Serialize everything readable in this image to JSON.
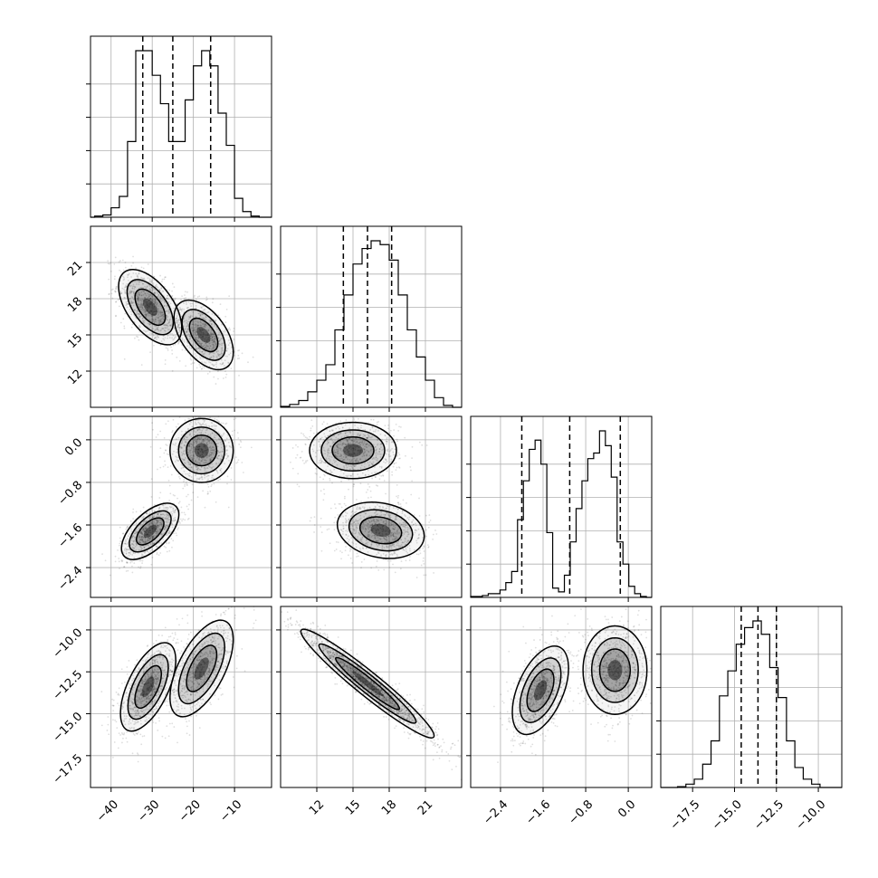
{
  "chart_data": {
    "type": "corner",
    "title": "",
    "grid": true,
    "variables": [
      {
        "range": [
          -45,
          -1
        ],
        "ticks": [
          -40,
          -30,
          -20,
          -10
        ],
        "tick_labels": [
          "-40",
          "-30",
          "-20",
          "-10"
        ],
        "quantiles": [
          -32.3,
          -25.0,
          -15.8
        ]
      },
      {
        "range": [
          9,
          24
        ],
        "ticks": [
          12,
          15,
          18,
          21
        ],
        "tick_labels": [
          "12",
          "15",
          "18",
          "21"
        ],
        "quantiles": [
          14.2,
          16.2,
          18.2
        ]
      },
      {
        "range": [
          -2.96,
          0.44
        ],
        "ticks": [
          -2.4,
          -1.6,
          -0.8,
          0.0
        ],
        "tick_labels": [
          "-2.4",
          "-1.6",
          "-0.8",
          "0.0"
        ],
        "quantiles": [
          -2.0,
          -1.1,
          -0.15
        ]
      },
      {
        "range": [
          -19.4,
          -8.6
        ],
        "ticks": [
          -17.5,
          -15.0,
          -12.5,
          -10.0
        ],
        "tick_labels": [
          "-17.5",
          "-15.0",
          "-12.5",
          "-10.0"
        ],
        "quantiles": [
          -14.6,
          -13.6,
          -12.5
        ]
      }
    ],
    "histograms": [
      {
        "variable": 0,
        "bin_edges": [
          -44,
          -42,
          -40,
          -38,
          -36,
          -34,
          -32,
          -30,
          -28,
          -26,
          -24,
          -22,
          -20,
          -18,
          -16,
          -14,
          -12,
          -10,
          -8,
          -6,
          -4
        ],
        "counts": [
          0.6,
          1.2,
          5,
          11,
          40,
          88,
          88,
          75,
          60,
          40,
          40,
          62,
          80,
          88,
          80,
          55,
          38,
          10,
          3,
          0.6
        ]
      },
      {
        "variable": 1,
        "bin_edges": [
          9,
          9.75,
          10.5,
          11.25,
          12,
          12.75,
          13.5,
          14.25,
          15,
          15.75,
          16.5,
          17.25,
          18,
          18.75,
          19.5,
          20.25,
          21,
          21.75,
          22.5,
          23.25
        ],
        "counts": [
          0.5,
          1.5,
          3.5,
          8,
          14,
          22,
          40,
          58,
          74,
          82,
          86,
          84,
          76,
          58,
          40,
          26,
          14,
          5,
          1
        ]
      },
      {
        "variable": 2,
        "bin_edges": [
          -2.96,
          -2.85,
          -2.74,
          -2.63,
          -2.52,
          -2.41,
          -2.3,
          -2.19,
          -2.08,
          -1.97,
          -1.86,
          -1.75,
          -1.64,
          -1.53,
          -1.42,
          -1.31,
          -1.2,
          -1.09,
          -0.98,
          -0.87,
          -0.76,
          -0.65,
          -0.54,
          -0.43,
          -0.32,
          -0.21,
          -0.1,
          0.01,
          0.12,
          0.23,
          0.34
        ],
        "counts": [
          0.5,
          0.5,
          1,
          2,
          2,
          4,
          8,
          14,
          42,
          63,
          80,
          85,
          72,
          35,
          5,
          3,
          12,
          30,
          48,
          63,
          75,
          78,
          90,
          82,
          65,
          30,
          18,
          6,
          2,
          0.5
        ]
      },
      {
        "variable": 3,
        "bin_edges": [
          -18.4,
          -17.9,
          -17.4,
          -16.9,
          -16.4,
          -15.9,
          -15.4,
          -14.9,
          -14.4,
          -13.9,
          -13.4,
          -12.9,
          -12.4,
          -11.9,
          -11.4,
          -10.9,
          -10.4,
          -9.9
        ],
        "counts": [
          0.5,
          2,
          5,
          14,
          28,
          55,
          70,
          86,
          96,
          100,
          92,
          72,
          54,
          28,
          12,
          5,
          2
        ]
      }
    ],
    "panels_2d": [
      {
        "x_var": 0,
        "y_var": 1,
        "clusters": [
          {
            "x": -30.5,
            "y": 17.3,
            "sx": 3.2,
            "sy": 1.3,
            "rho": -0.55,
            "weight": 1.2
          },
          {
            "x": -17.5,
            "y": 15.0,
            "sx": 3.0,
            "sy": 1.2,
            "rho": -0.5,
            "weight": 1.0
          }
        ]
      },
      {
        "x_var": 0,
        "y_var": 2,
        "clusters": [
          {
            "x": -30.5,
            "y": -1.72,
            "sx": 2.9,
            "sy": 0.22,
            "rho": 0.6,
            "weight": 1.0
          },
          {
            "x": -18.0,
            "y": -0.2,
            "sx": 3.2,
            "sy": 0.25,
            "rho": 0.0,
            "weight": 1.0
          }
        ]
      },
      {
        "x_var": 1,
        "y_var": 2,
        "clusters": [
          {
            "x": 15.0,
            "y": -0.2,
            "sx": 1.5,
            "sy": 0.22,
            "rho": 0.0,
            "weight": 1.0
          },
          {
            "x": 17.3,
            "y": -1.7,
            "sx": 1.5,
            "sy": 0.22,
            "rho": -0.2,
            "weight": 1.1
          }
        ]
      },
      {
        "x_var": 0,
        "y_var": 3,
        "clusters": [
          {
            "x": -31.0,
            "y": -13.4,
            "sx": 2.8,
            "sy": 1.1,
            "rho": 0.6,
            "weight": 1.1
          },
          {
            "x": -18.0,
            "y": -12.3,
            "sx": 3.2,
            "sy": 1.2,
            "rho": 0.6,
            "weight": 1.0
          }
        ]
      },
      {
        "x_var": 1,
        "y_var": 3,
        "clusters": [
          {
            "x": 16.2,
            "y": -13.2,
            "sx": 2.3,
            "sy": 1.35,
            "rho": -0.96,
            "weight": 1.0
          }
        ]
      },
      {
        "x_var": 2,
        "y_var": 3,
        "clusters": [
          {
            "x": -1.65,
            "y": -13.6,
            "sx": 0.22,
            "sy": 1.1,
            "rho": 0.5,
            "weight": 1.1
          },
          {
            "x": -0.25,
            "y": -12.4,
            "sx": 0.25,
            "sy": 1.1,
            "rho": 0.0,
            "weight": 1.0
          }
        ]
      }
    ]
  }
}
